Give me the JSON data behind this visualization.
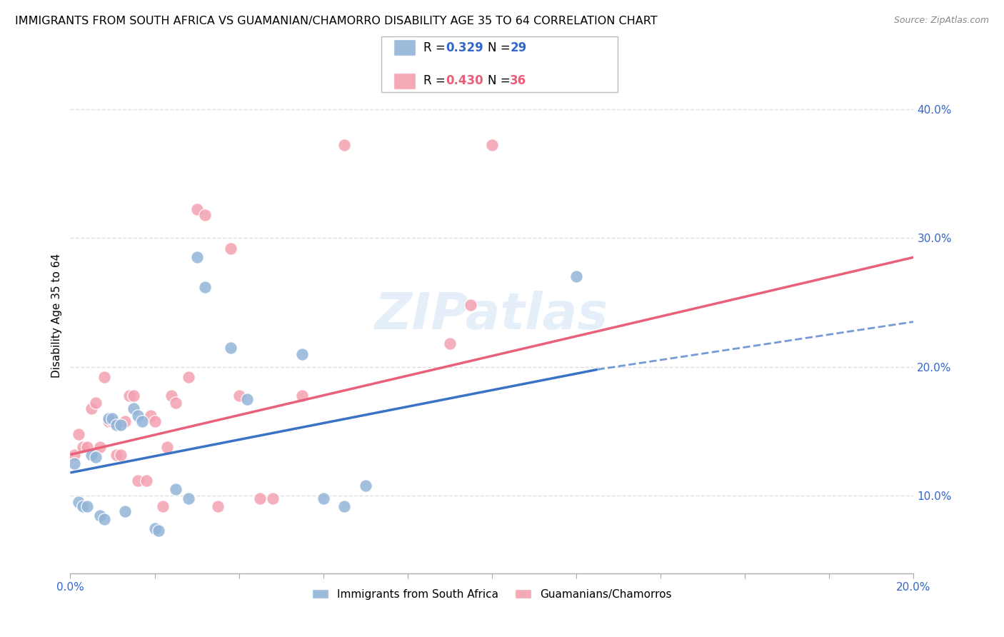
{
  "title": "IMMIGRANTS FROM SOUTH AFRICA VS GUAMANIAN/CHAMORRO DISABILITY AGE 35 TO 64 CORRELATION CHART",
  "source": "Source: ZipAtlas.com",
  "ylabel": "Disability Age 35 to 64",
  "legend_blue_label": "Immigrants from South Africa",
  "legend_pink_label": "Guamanians/Chamorros",
  "xlim": [
    0.0,
    0.2
  ],
  "ylim": [
    0.04,
    0.44
  ],
  "yticks": [
    0.1,
    0.2,
    0.3,
    0.4
  ],
  "ytick_labels": [
    "10.0%",
    "20.0%",
    "30.0%",
    "40.0%"
  ],
  "xticks": [
    0.0,
    0.02,
    0.04,
    0.06,
    0.08,
    0.1,
    0.12,
    0.14,
    0.16,
    0.18,
    0.2
  ],
  "xtick_labels": [
    "0.0%",
    "",
    "",
    "",
    "",
    "",
    "",
    "",
    "",
    "",
    "20.0%"
  ],
  "blue_color": "#92B4D8",
  "pink_color": "#F4A0B0",
  "blue_line_color": "#3A72C4",
  "pink_line_color": "#E8607A",
  "blue_scatter": [
    [
      0.001,
      0.125
    ],
    [
      0.002,
      0.095
    ],
    [
      0.003,
      0.092
    ],
    [
      0.004,
      0.092
    ],
    [
      0.005,
      0.132
    ],
    [
      0.006,
      0.13
    ],
    [
      0.007,
      0.085
    ],
    [
      0.008,
      0.082
    ],
    [
      0.009,
      0.16
    ],
    [
      0.01,
      0.16
    ],
    [
      0.011,
      0.155
    ],
    [
      0.012,
      0.155
    ],
    [
      0.013,
      0.088
    ],
    [
      0.015,
      0.168
    ],
    [
      0.016,
      0.162
    ],
    [
      0.017,
      0.158
    ],
    [
      0.02,
      0.075
    ],
    [
      0.021,
      0.073
    ],
    [
      0.025,
      0.105
    ],
    [
      0.028,
      0.098
    ],
    [
      0.03,
      0.285
    ],
    [
      0.032,
      0.262
    ],
    [
      0.038,
      0.215
    ],
    [
      0.042,
      0.175
    ],
    [
      0.055,
      0.21
    ],
    [
      0.06,
      0.098
    ],
    [
      0.065,
      0.092
    ],
    [
      0.07,
      0.108
    ],
    [
      0.12,
      0.27
    ]
  ],
  "pink_scatter": [
    [
      0.001,
      0.132
    ],
    [
      0.002,
      0.148
    ],
    [
      0.003,
      0.138
    ],
    [
      0.004,
      0.138
    ],
    [
      0.005,
      0.168
    ],
    [
      0.006,
      0.172
    ],
    [
      0.007,
      0.138
    ],
    [
      0.008,
      0.192
    ],
    [
      0.009,
      0.158
    ],
    [
      0.01,
      0.158
    ],
    [
      0.011,
      0.132
    ],
    [
      0.012,
      0.132
    ],
    [
      0.013,
      0.158
    ],
    [
      0.014,
      0.178
    ],
    [
      0.015,
      0.178
    ],
    [
      0.016,
      0.112
    ],
    [
      0.018,
      0.112
    ],
    [
      0.019,
      0.162
    ],
    [
      0.02,
      0.158
    ],
    [
      0.022,
      0.092
    ],
    [
      0.023,
      0.138
    ],
    [
      0.024,
      0.178
    ],
    [
      0.025,
      0.172
    ],
    [
      0.028,
      0.192
    ],
    [
      0.03,
      0.322
    ],
    [
      0.032,
      0.318
    ],
    [
      0.035,
      0.092
    ],
    [
      0.038,
      0.292
    ],
    [
      0.04,
      0.178
    ],
    [
      0.045,
      0.098
    ],
    [
      0.048,
      0.098
    ],
    [
      0.055,
      0.178
    ],
    [
      0.065,
      0.372
    ],
    [
      0.09,
      0.218
    ],
    [
      0.095,
      0.248
    ],
    [
      0.1,
      0.372
    ]
  ],
  "blue_line": [
    [
      0.0,
      0.118
    ],
    [
      0.125,
      0.198
    ]
  ],
  "pink_line": [
    [
      0.0,
      0.132
    ],
    [
      0.2,
      0.285
    ]
  ],
  "blue_dashed_line": [
    [
      0.125,
      0.198
    ],
    [
      0.2,
      0.235
    ]
  ],
  "grid_color": "#DDDDDD",
  "background_color": "#FFFFFF",
  "title_fontsize": 11.5,
  "axis_label_fontsize": 11,
  "tick_fontsize": 11
}
